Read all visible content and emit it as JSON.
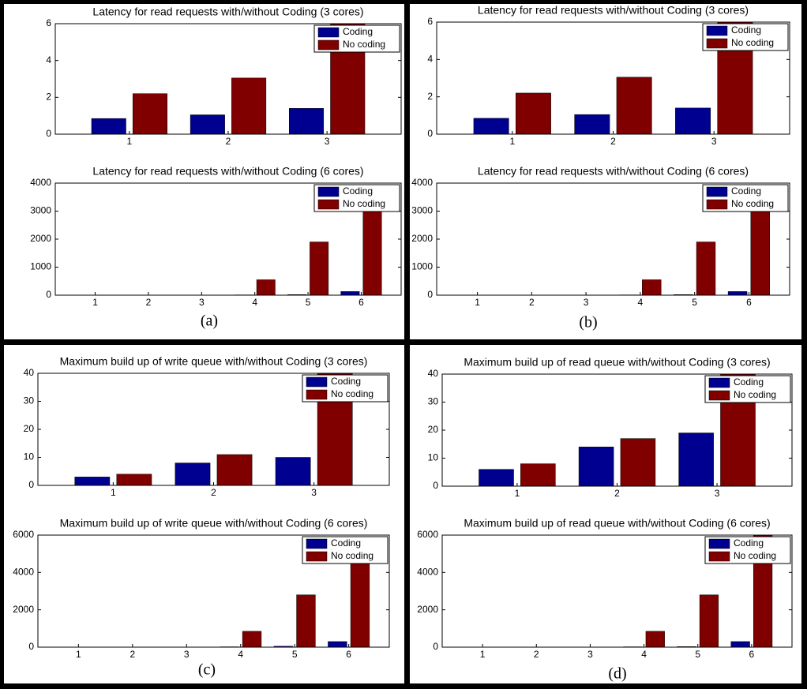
{
  "panel_labels": [
    "(a)",
    "(b)",
    "(c)",
    "(d)"
  ],
  "chart_data": [
    {
      "type": "bar",
      "title": "Latency for read requests with/without Coding (3 cores)",
      "categories": [
        "1",
        "2",
        "3"
      ],
      "series": [
        {
          "name": "Coding",
          "color": "#000090",
          "values": [
            0.85,
            1.05,
            1.4
          ]
        },
        {
          "name": "No coding",
          "color": "#800000",
          "values": [
            2.2,
            3.05,
            6
          ]
        }
      ],
      "ylim": [
        0,
        6
      ],
      "yticks": [
        0,
        2,
        4,
        6
      ],
      "legend": "upper right"
    },
    {
      "type": "bar",
      "title": "Latency for read requests with/without Coding (6 cores)",
      "categories": [
        "1",
        "2",
        "3",
        "4",
        "5",
        "6"
      ],
      "series": [
        {
          "name": "Coding",
          "color": "#000090",
          "values": [
            0,
            0,
            5,
            10,
            20,
            130
          ]
        },
        {
          "name": "No coding",
          "color": "#800000",
          "values": [
            0,
            0,
            0,
            550,
            1900,
            3900
          ]
        }
      ],
      "ylim": [
        0,
        4000
      ],
      "yticks": [
        0,
        1000,
        2000,
        3000,
        4000
      ],
      "legend": "upper right"
    },
    {
      "type": "bar",
      "title": "Latency for read requests with/without Coding (3 cores)",
      "categories": [
        "1",
        "2",
        "3"
      ],
      "series": [
        {
          "name": "Coding",
          "color": "#000090",
          "values": [
            0.85,
            1.05,
            1.4
          ]
        },
        {
          "name": "No coding",
          "color": "#800000",
          "values": [
            2.2,
            3.05,
            6
          ]
        }
      ],
      "ylim": [
        0,
        6
      ],
      "yticks": [
        0,
        2,
        4,
        6
      ],
      "legend": "upper right"
    },
    {
      "type": "bar",
      "title": "Latency for read requests with/without Coding (6 cores)",
      "categories": [
        "1",
        "2",
        "3",
        "4",
        "5",
        "6"
      ],
      "series": [
        {
          "name": "Coding",
          "color": "#000090",
          "values": [
            0,
            0,
            5,
            10,
            20,
            130
          ]
        },
        {
          "name": "No coding",
          "color": "#800000",
          "values": [
            0,
            0,
            0,
            550,
            1900,
            3900
          ]
        }
      ],
      "ylim": [
        0,
        4000
      ],
      "yticks": [
        0,
        1000,
        2000,
        3000,
        4000
      ],
      "legend": "upper right"
    },
    {
      "type": "bar",
      "title": "Maximum build up of write queue with/without Coding (3 cores)",
      "categories": [
        "1",
        "2",
        "3"
      ],
      "series": [
        {
          "name": "Coding",
          "color": "#000090",
          "values": [
            3,
            8,
            10
          ]
        },
        {
          "name": "No coding",
          "color": "#800000",
          "values": [
            4,
            11,
            40
          ]
        }
      ],
      "ylim": [
        0,
        40
      ],
      "yticks": [
        0,
        10,
        20,
        30,
        40
      ],
      "legend": "upper right"
    },
    {
      "type": "bar",
      "title": "Maximum build up of write queue with/without Coding (6 cores)",
      "categories": [
        "1",
        "2",
        "3",
        "4",
        "5",
        "6"
      ],
      "series": [
        {
          "name": "Coding",
          "color": "#000090",
          "values": [
            0,
            0,
            10,
            20,
            50,
            300
          ]
        },
        {
          "name": "No coding",
          "color": "#800000",
          "values": [
            0,
            0,
            0,
            850,
            2800,
            5800
          ]
        }
      ],
      "ylim": [
        0,
        6000
      ],
      "yticks": [
        0,
        2000,
        4000,
        6000
      ],
      "legend": "upper right"
    },
    {
      "type": "bar",
      "title": "Maximum build up of read queue with/without Coding (3 cores)",
      "categories": [
        "1",
        "2",
        "3"
      ],
      "series": [
        {
          "name": "Coding",
          "color": "#000090",
          "values": [
            6,
            14,
            19
          ]
        },
        {
          "name": "No coding",
          "color": "#800000",
          "values": [
            8,
            17,
            40
          ]
        }
      ],
      "ylim": [
        0,
        40
      ],
      "yticks": [
        0,
        10,
        20,
        30,
        40
      ],
      "legend": "upper right"
    },
    {
      "type": "bar",
      "title": "Maximum build up of read queue with/without Coding (6 cores)",
      "categories": [
        "1",
        "2",
        "3",
        "4",
        "5",
        "6"
      ],
      "series": [
        {
          "name": "Coding",
          "color": "#000090",
          "values": [
            0,
            0,
            10,
            20,
            30,
            300
          ]
        },
        {
          "name": "No coding",
          "color": "#800000",
          "values": [
            0,
            0,
            0,
            850,
            2800,
            6000
          ]
        }
      ],
      "ylim": [
        0,
        6000
      ],
      "yticks": [
        0,
        2000,
        4000,
        6000
      ],
      "legend": "upper right"
    }
  ]
}
